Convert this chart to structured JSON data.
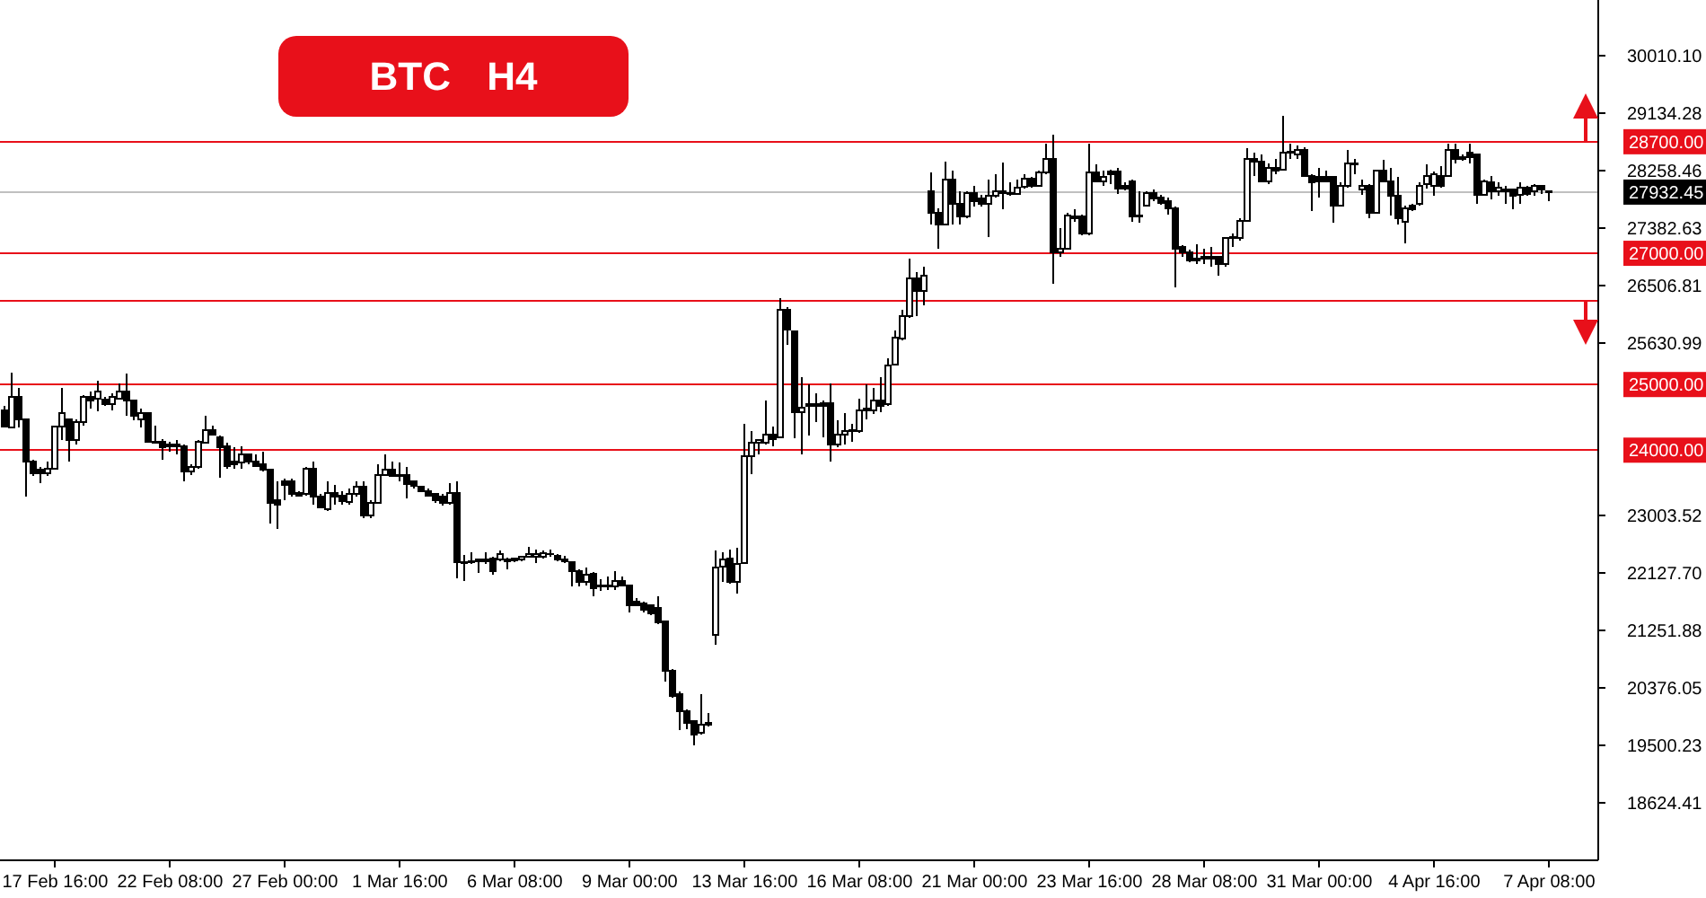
{
  "chart_data": {
    "type": "candlestick",
    "title": "BTC H4",
    "color": "#000000",
    "categories": [
      null,
      null,
      null,
      null,
      null,
      null,
      null,
      "17 Feb 16:00",
      null,
      null,
      null,
      null,
      null,
      null,
      null,
      null,
      null,
      null,
      null,
      null,
      null,
      null,
      null,
      "22 Feb 08:00",
      null,
      null,
      null,
      null,
      null,
      null,
      null,
      null,
      null,
      null,
      null,
      null,
      null,
      null,
      null,
      "27 Feb 00:00",
      null,
      null,
      null,
      null,
      null,
      null,
      null,
      null,
      null,
      null,
      null,
      null,
      null,
      null,
      null,
      "1 Mar 16:00",
      null,
      null,
      null,
      null,
      null,
      null,
      null,
      null,
      null,
      null,
      null,
      null,
      null,
      null,
      null,
      "6 Mar 08:00",
      null,
      null,
      null,
      null,
      null,
      null,
      null,
      null,
      null,
      null,
      null,
      null,
      null,
      null,
      null,
      "9 Mar 00:00",
      null,
      null,
      null,
      null,
      null,
      null,
      null,
      null,
      null,
      null,
      null,
      null,
      null,
      null,
      null,
      "13 Mar 16:00",
      null,
      null,
      null,
      null,
      null,
      null,
      null,
      null,
      null,
      null,
      null,
      null,
      null,
      null,
      null,
      "16 Mar 08:00",
      null,
      null,
      null,
      null,
      null,
      null,
      null,
      null,
      null,
      null,
      null,
      null,
      null,
      null,
      null,
      "21 Mar 00:00",
      null,
      null,
      null,
      null,
      null,
      null,
      null,
      null,
      null,
      null,
      null,
      null,
      null,
      null,
      null,
      "23 Mar 16:00",
      null,
      null,
      null,
      null,
      null,
      null,
      null,
      null,
      null,
      null,
      null,
      null,
      null,
      null,
      null,
      "28 Mar 08:00",
      null,
      null,
      null,
      null,
      null,
      null,
      null,
      null,
      null,
      null,
      null,
      null,
      null,
      null,
      null,
      "31 Mar 00:00",
      null,
      null,
      null,
      null,
      null,
      null,
      null,
      null,
      null,
      null,
      null,
      null,
      null,
      null,
      null,
      "4 Apr 16:00",
      null,
      null,
      null,
      null,
      null,
      null,
      null,
      null,
      null,
      null,
      null,
      null,
      null,
      null,
      null,
      "7 Apr 08:00"
    ],
    "ohlc": [
      [
        24610,
        24680,
        24340,
        24360
      ],
      [
        24350,
        25180,
        24340,
        24810
      ],
      [
        24810,
        24950,
        24340,
        24470
      ],
      [
        24470,
        24480,
        23290,
        23820
      ],
      [
        23820,
        23850,
        23610,
        23650
      ],
      [
        23700,
        23740,
        23500,
        23650
      ],
      [
        23650,
        23830,
        23610,
        23720
      ],
      [
        23720,
        24370,
        23700,
        24360
      ],
      [
        24360,
        24950,
        24150,
        24560
      ],
      [
        24470,
        24480,
        23820,
        24150
      ],
      [
        24150,
        24470,
        24090,
        24430
      ],
      [
        24430,
        24840,
        24380,
        24810
      ],
      [
        24810,
        24900,
        24630,
        24760
      ],
      [
        24790,
        25060,
        24590,
        24900
      ],
      [
        24770,
        24810,
        24680,
        24700
      ],
      [
        24700,
        24860,
        24610,
        24810
      ],
      [
        24790,
        25020,
        24770,
        24900
      ],
      [
        24900,
        25170,
        24520,
        24750
      ],
      [
        24750,
        24760,
        24450,
        24520
      ],
      [
        24470,
        24630,
        24340,
        24560
      ],
      [
        24560,
        24570,
        24110,
        24130
      ],
      [
        24130,
        24380,
        24100,
        24110
      ],
      [
        24130,
        24170,
        23850,
        24040
      ],
      [
        24080,
        24130,
        23970,
        24060
      ],
      [
        24060,
        24150,
        23930,
        24080
      ],
      [
        24060,
        24080,
        23530,
        23680
      ],
      [
        23670,
        23790,
        23620,
        23740
      ],
      [
        23740,
        24150,
        23720,
        24130
      ],
      [
        24110,
        24520,
        24100,
        24310
      ],
      [
        24310,
        24380,
        24230,
        24240
      ],
      [
        24200,
        24220,
        23580,
        24040
      ],
      [
        24060,
        24110,
        23720,
        23760
      ],
      [
        23830,
        24040,
        23720,
        23790
      ],
      [
        23810,
        24060,
        23720,
        23930
      ],
      [
        23930,
        23950,
        23790,
        23830
      ],
      [
        23830,
        23930,
        23740,
        23760
      ],
      [
        23790,
        23970,
        23680,
        23700
      ],
      [
        23700,
        23720,
        22880,
        23200
      ],
      [
        23240,
        23520,
        22800,
        23170
      ],
      [
        23520,
        23560,
        23240,
        23470
      ],
      [
        23520,
        23560,
        23290,
        23330
      ],
      [
        23350,
        23380,
        23290,
        23310
      ],
      [
        23330,
        23740,
        23310,
        23720
      ],
      [
        23720,
        23830,
        23170,
        23290
      ],
      [
        23290,
        23330,
        23120,
        23130
      ],
      [
        23100,
        23530,
        23080,
        23350
      ],
      [
        23350,
        23470,
        23170,
        23290
      ],
      [
        23310,
        23380,
        23170,
        23220
      ],
      [
        23210,
        23420,
        23170,
        23330
      ],
      [
        23330,
        23530,
        23290,
        23440
      ],
      [
        23440,
        23520,
        22970,
        23010
      ],
      [
        23010,
        23240,
        22970,
        23200
      ],
      [
        23200,
        23790,
        23180,
        23620
      ],
      [
        23620,
        23930,
        23610,
        23700
      ],
      [
        23700,
        23820,
        23590,
        23610
      ],
      [
        23620,
        23810,
        23520,
        23610
      ],
      [
        23620,
        23740,
        23260,
        23490
      ],
      [
        23520,
        23530,
        23420,
        23450
      ],
      [
        23440,
        23450,
        23360,
        23380
      ],
      [
        23380,
        23420,
        23290,
        23310
      ],
      [
        23330,
        23350,
        23200,
        23240
      ],
      [
        23290,
        23330,
        23150,
        23200
      ],
      [
        23200,
        23500,
        23170,
        23350
      ],
      [
        23350,
        23520,
        22050,
        22300
      ],
      [
        22300,
        22400,
        22010,
        22280
      ],
      [
        22310,
        22440,
        22260,
        22290
      ],
      [
        22330,
        22350,
        22130,
        22310
      ],
      [
        22310,
        22440,
        22260,
        22330
      ],
      [
        22350,
        22370,
        22100,
        22160
      ],
      [
        22340,
        22470,
        22310,
        22420
      ],
      [
        22330,
        22360,
        22190,
        22310
      ],
      [
        22350,
        22360,
        22300,
        22320
      ],
      [
        22330,
        22390,
        22310,
        22370
      ],
      [
        22370,
        22530,
        22360,
        22420
      ],
      [
        22370,
        22480,
        22280,
        22420
      ],
      [
        22370,
        22470,
        22350,
        22430
      ],
      [
        22420,
        22480,
        22370,
        22410
      ],
      [
        22390,
        22410,
        22310,
        22330
      ],
      [
        22330,
        22390,
        22280,
        22310
      ],
      [
        22300,
        22310,
        21920,
        22150
      ],
      [
        22150,
        22190,
        21920,
        21990
      ],
      [
        21990,
        22210,
        21940,
        22100
      ],
      [
        22120,
        22140,
        21780,
        21900
      ],
      [
        21940,
        22030,
        21860,
        21920
      ],
      [
        21920,
        22080,
        21870,
        21940
      ],
      [
        21920,
        22150,
        21870,
        22010
      ],
      [
        22010,
        22080,
        21920,
        21940
      ],
      [
        21940,
        21950,
        21530,
        21630
      ],
      [
        21690,
        21750,
        21630,
        21640
      ],
      [
        21660,
        21690,
        21530,
        21570
      ],
      [
        21630,
        21640,
        21480,
        21510
      ],
      [
        21600,
        21780,
        21350,
        21370
      ],
      [
        21390,
        21410,
        20480,
        20640
      ],
      [
        20640,
        20660,
        20230,
        20260
      ],
      [
        20280,
        20320,
        19730,
        20020
      ],
      [
        20020,
        20050,
        19750,
        19840
      ],
      [
        19870,
        19890,
        19500,
        19660
      ],
      [
        19690,
        20280,
        19660,
        19820
      ],
      [
        19820,
        20000,
        19790,
        19840
      ],
      [
        21190,
        22470,
        21030,
        22210
      ],
      [
        22220,
        22450,
        21990,
        22340
      ],
      [
        22350,
        22490,
        21960,
        21990
      ],
      [
        21990,
        22510,
        21810,
        22270
      ],
      [
        22280,
        24400,
        22270,
        23910
      ],
      [
        23910,
        24290,
        23630,
        24110
      ],
      [
        24110,
        24170,
        23930,
        24150
      ],
      [
        24110,
        24750,
        24080,
        24230
      ],
      [
        24230,
        24360,
        24060,
        24170
      ],
      [
        24200,
        26320,
        24180,
        26140
      ],
      [
        26140,
        26180,
        25600,
        25840
      ],
      [
        25810,
        25820,
        24180,
        24580
      ],
      [
        24580,
        25110,
        23930,
        24650
      ],
      [
        24680,
        25000,
        24220,
        24700
      ],
      [
        24700,
        24860,
        24430,
        24680
      ],
      [
        24720,
        24750,
        24200,
        24680
      ],
      [
        24720,
        25020,
        23830,
        24080
      ],
      [
        24080,
        24450,
        24040,
        24230
      ],
      [
        24240,
        24560,
        24080,
        24290
      ],
      [
        24290,
        24400,
        24130,
        24310
      ],
      [
        24290,
        24790,
        24270,
        24610
      ],
      [
        24610,
        25000,
        24470,
        24630
      ],
      [
        24610,
        24950,
        24550,
        24750
      ],
      [
        24750,
        25110,
        24580,
        24680
      ],
      [
        24700,
        25400,
        24670,
        25290
      ],
      [
        25310,
        25820,
        25290,
        25710
      ],
      [
        25700,
        26140,
        25680,
        26040
      ],
      [
        26040,
        26920,
        26020,
        26620
      ],
      [
        26620,
        26710,
        26040,
        26430
      ],
      [
        26430,
        26800,
        26210,
        26660
      ],
      [
        27940,
        28230,
        27440,
        27620
      ],
      [
        27620,
        27680,
        27070,
        27440
      ],
      [
        27440,
        28400,
        27440,
        28120
      ],
      [
        28120,
        28260,
        27440,
        27760
      ],
      [
        27760,
        27940,
        27440,
        27560
      ],
      [
        27560,
        27940,
        27530,
        27920
      ],
      [
        27920,
        28030,
        27710,
        27800
      ],
      [
        27830,
        27890,
        27710,
        27760
      ],
      [
        27760,
        28120,
        27250,
        27870
      ],
      [
        27870,
        28200,
        27850,
        27940
      ],
      [
        27940,
        28380,
        27670,
        27920
      ],
      [
        27920,
        28080,
        27870,
        27900
      ],
      [
        27910,
        28120,
        27890,
        28000
      ],
      [
        28010,
        28200,
        27990,
        28140
      ],
      [
        28140,
        28170,
        28000,
        28030
      ],
      [
        28030,
        28260,
        28010,
        28230
      ],
      [
        28230,
        28670,
        28210,
        28440
      ],
      [
        28440,
        28810,
        26540,
        27010
      ],
      [
        27010,
        27390,
        26940,
        27070
      ],
      [
        27070,
        27620,
        27050,
        27570
      ],
      [
        27560,
        27670,
        27480,
        27540
      ],
      [
        27560,
        27590,
        27280,
        27300
      ],
      [
        27300,
        28670,
        27280,
        28230
      ],
      [
        28230,
        28350,
        28080,
        28100
      ],
      [
        28100,
        28260,
        28030,
        28170
      ],
      [
        28240,
        28280,
        28050,
        28210
      ],
      [
        28240,
        28300,
        27910,
        27990
      ],
      [
        28030,
        28080,
        27960,
        27990
      ],
      [
        28100,
        28120,
        27480,
        27560
      ],
      [
        27570,
        27940,
        27470,
        27560
      ],
      [
        27730,
        27940,
        27710,
        27920
      ],
      [
        27920,
        27970,
        27800,
        27830
      ],
      [
        27850,
        27890,
        27740,
        27770
      ],
      [
        27800,
        27850,
        27590,
        27680
      ],
      [
        27680,
        27710,
        26480,
        27070
      ],
      [
        27100,
        27120,
        26940,
        27010
      ],
      [
        27010,
        27050,
        26860,
        26890
      ],
      [
        26920,
        27140,
        26830,
        26890
      ],
      [
        26920,
        27070,
        26830,
        26950
      ],
      [
        26940,
        27100,
        26800,
        26920
      ],
      [
        26940,
        26950,
        26660,
        26830
      ],
      [
        26830,
        27250,
        26800,
        27230
      ],
      [
        27230,
        27300,
        27100,
        27250
      ],
      [
        27230,
        27530,
        27190,
        27500
      ],
      [
        27500,
        28600,
        27480,
        28440
      ],
      [
        28440,
        28530,
        28180,
        28390
      ],
      [
        28400,
        28510,
        28080,
        28090
      ],
      [
        28090,
        28370,
        28060,
        28300
      ],
      [
        28300,
        28440,
        28210,
        28260
      ],
      [
        28280,
        29100,
        28260,
        28530
      ],
      [
        28530,
        28670,
        28440,
        28550
      ],
      [
        28500,
        28640,
        28440,
        28580
      ],
      [
        28580,
        28610,
        28170,
        28180
      ],
      [
        28180,
        28210,
        27640,
        28080
      ],
      [
        28170,
        28300,
        27850,
        28090
      ],
      [
        28170,
        28260,
        28080,
        28090
      ],
      [
        28170,
        28180,
        27460,
        27730
      ],
      [
        27730,
        28080,
        27710,
        28030
      ],
      [
        28030,
        28580,
        28000,
        28370
      ],
      [
        28370,
        28440,
        28210,
        28350
      ],
      [
        27970,
        28120,
        27890,
        28030
      ],
      [
        28030,
        28060,
        27530,
        27620
      ],
      [
        27620,
        28280,
        27600,
        28260
      ],
      [
        28260,
        28420,
        28080,
        28090
      ],
      [
        28090,
        28300,
        27570,
        27880
      ],
      [
        27880,
        28170,
        27440,
        27530
      ],
      [
        27480,
        27730,
        27150,
        27680
      ],
      [
        27730,
        27760,
        27640,
        27670
      ],
      [
        27760,
        28080,
        27730,
        28030
      ],
      [
        28050,
        28350,
        27990,
        28180
      ],
      [
        28030,
        28240,
        27880,
        28210
      ],
      [
        28180,
        28330,
        28000,
        28030
      ],
      [
        28180,
        28670,
        28170,
        28580
      ],
      [
        28580,
        28670,
        28370,
        28440
      ],
      [
        28470,
        28510,
        28410,
        28440
      ],
      [
        28530,
        28670,
        28370,
        28460
      ],
      [
        28510,
        28520,
        27760,
        27890
      ],
      [
        27890,
        28120,
        27880,
        28090
      ],
      [
        28080,
        28180,
        27820,
        27940
      ],
      [
        27940,
        28080,
        27880,
        28000
      ],
      [
        27970,
        28030,
        27760,
        27940
      ],
      [
        27970,
        27990,
        27670,
        27880
      ],
      [
        27890,
        28080,
        27760,
        28000
      ],
      [
        28000,
        28030,
        27880,
        27910
      ],
      [
        27940,
        28050,
        27880,
        28030
      ],
      [
        28030,
        28040,
        27910,
        27970
      ],
      [
        27940,
        27950,
        27800,
        27930
      ]
    ],
    "ylim": [
      17750,
      30860
    ],
    "yticks": [
      {
        "value": 30010.1,
        "label": "30010.10"
      },
      {
        "value": 29134.28,
        "label": "29134.28"
      },
      {
        "value": 28258.46,
        "label": "28258.46"
      },
      {
        "value": 27382.63,
        "label": "27382.63"
      },
      {
        "value": 26506.81,
        "label": "26506.81"
      },
      {
        "value": 25630.99,
        "label": "25630.99"
      },
      {
        "value": 23003.52,
        "label": "23003.52"
      },
      {
        "value": 22127.7,
        "label": "22127.70"
      },
      {
        "value": 21251.88,
        "label": "21251.88"
      },
      {
        "value": 20376.05,
        "label": "20376.05"
      },
      {
        "value": 19500.23,
        "label": "19500.23"
      },
      {
        "value": 18624.41,
        "label": "18624.41"
      }
    ],
    "ref_lines": [
      {
        "axis": "y",
        "value": 28700,
        "label": "28700.00",
        "color": "#e8101a"
      },
      {
        "axis": "y",
        "value": 27932.45,
        "label": "27932.45",
        "color": "#c0c0c0"
      },
      {
        "axis": "y",
        "value": 27000,
        "label": "27000.00",
        "color": "#e8101a"
      },
      {
        "axis": "y",
        "value": 26280,
        "color": "#e8101a"
      },
      {
        "axis": "y",
        "value": 25000,
        "label": "25000.00",
        "color": "#e8101a"
      },
      {
        "axis": "y",
        "value": 24000,
        "label": "24000.00",
        "color": "#e8101a"
      }
    ]
  }
}
